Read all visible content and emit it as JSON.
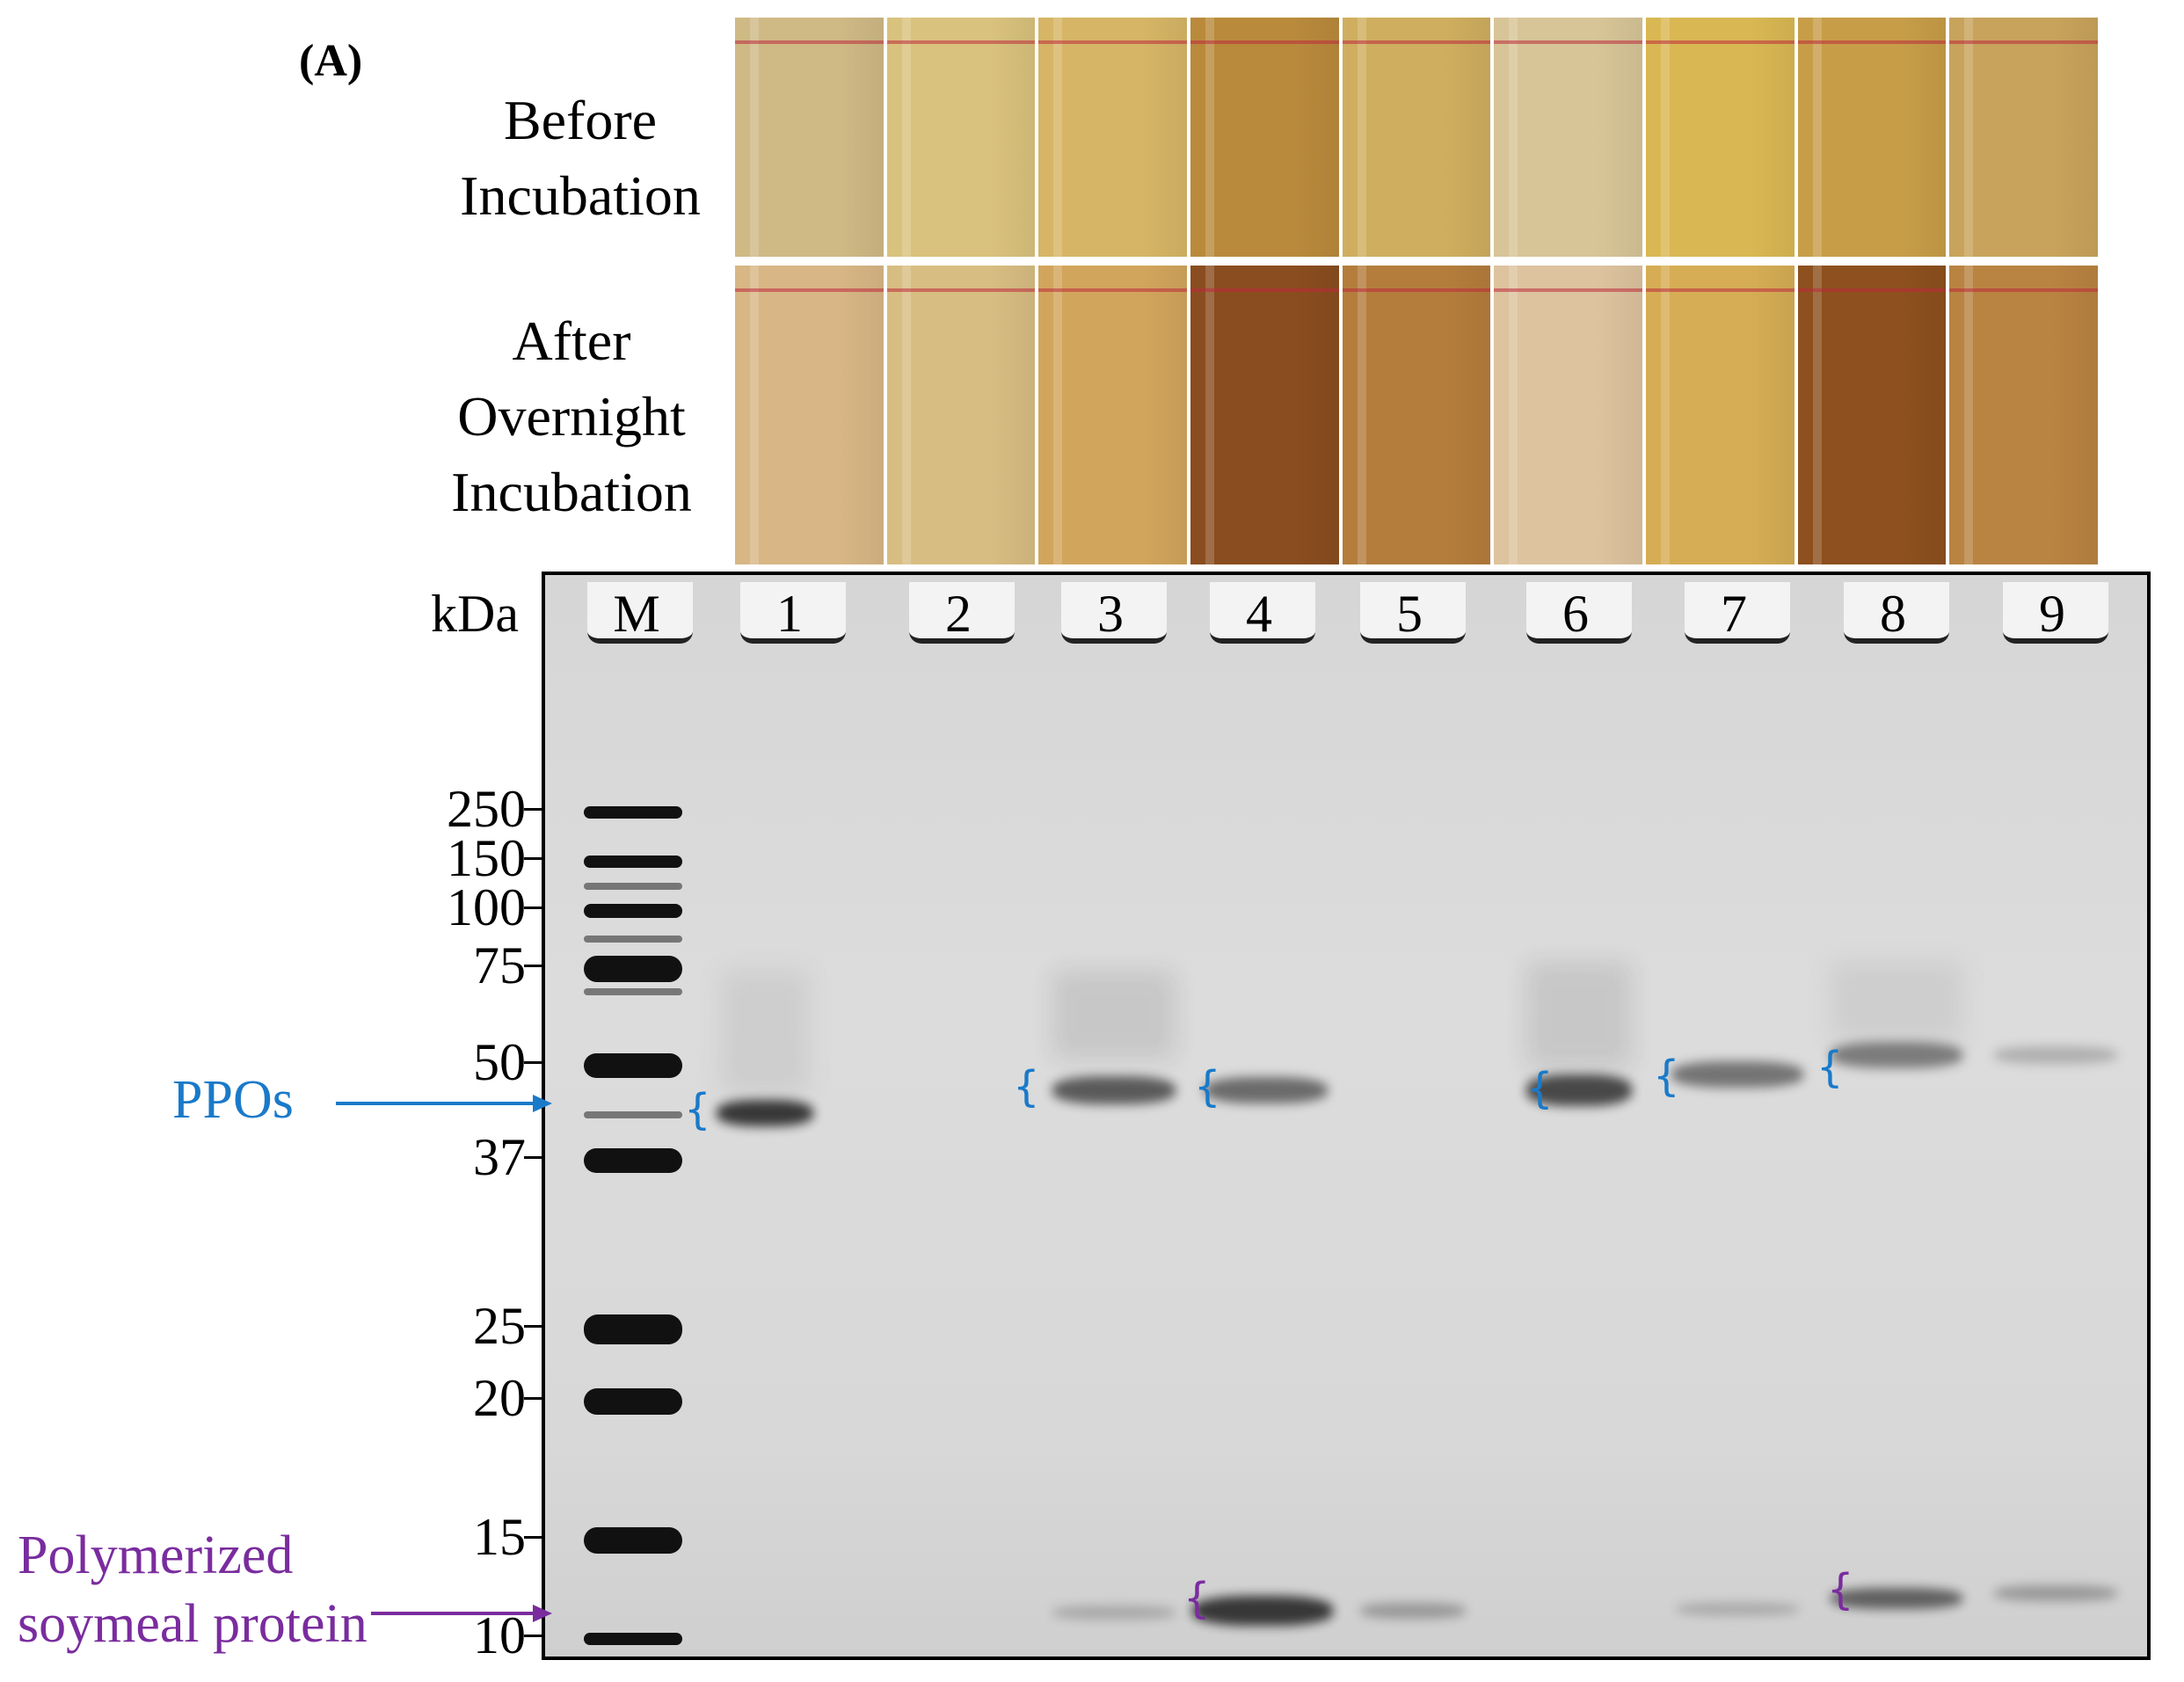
{
  "figure": {
    "panel_label": "(A)",
    "before_label": "Before\nIncubation",
    "after_label": "After\nOvernight\nIncubation"
  },
  "tubes": {
    "before_colors": [
      "#cfb985",
      "#d9c27d",
      "#d6b566",
      "#b98a3c",
      "#cfae5f",
      "#d7c597",
      "#d9b853",
      "#c79d48",
      "#c8a35b"
    ],
    "after_colors": [
      "#d8b685",
      "#d8bd82",
      "#d2a55c",
      "#8a4d1f",
      "#b47d3c",
      "#ddc39e",
      "#d6ad55",
      "#8d501e",
      "#b98341"
    ]
  },
  "gel": {
    "kda_label": "kDa",
    "lanes": [
      "M",
      "1",
      "2",
      "3",
      "4",
      "5",
      "6",
      "7",
      "8",
      "9"
    ],
    "markers": [
      "250",
      "150",
      "100",
      "75",
      "50",
      "37",
      "25",
      "20",
      "15",
      "10"
    ],
    "annotations": {
      "ppos": "PPOs",
      "polymerized": "Polymerized\nsoymeal protein"
    },
    "colors": {
      "ppos": "#1a7ac9",
      "polymerized": "#7a2c9e"
    }
  }
}
